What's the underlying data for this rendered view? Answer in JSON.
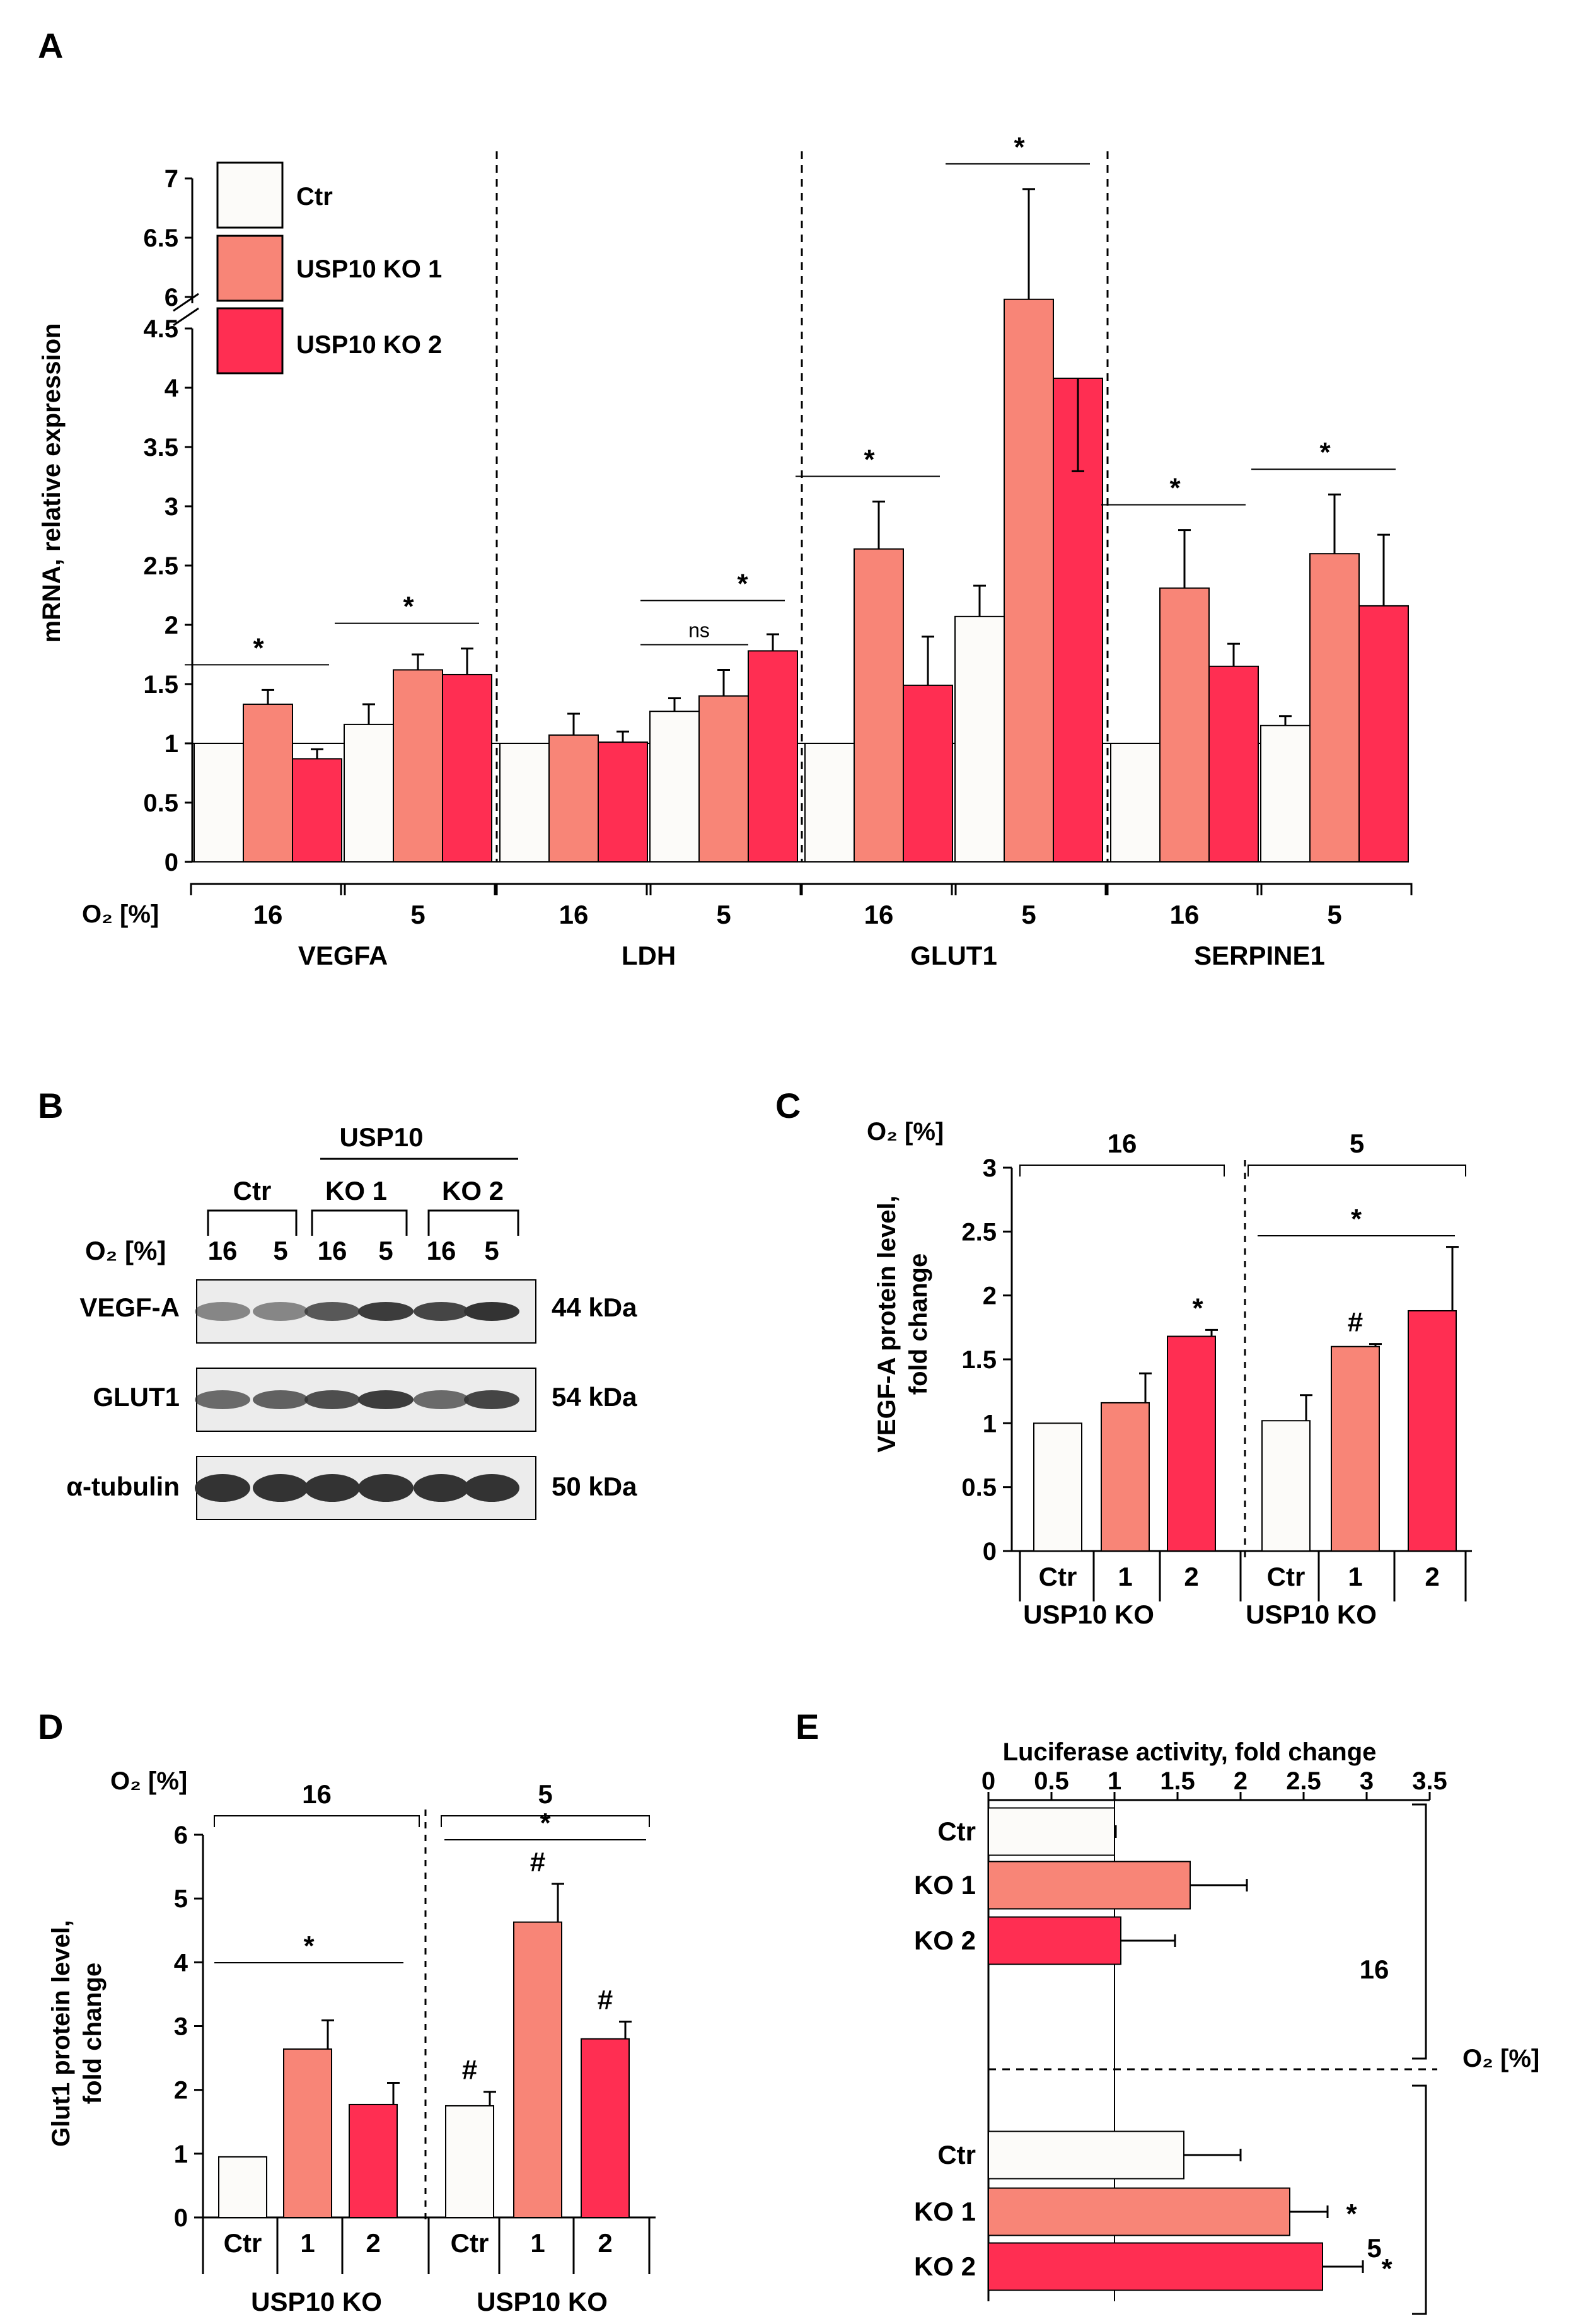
{
  "colors": {
    "ctr": "#fcfbf9",
    "ko1": "#f88577",
    "ko2": "#ff2e52",
    "axis": "#000000",
    "blot_bg": "#ececec",
    "blot_band": "#333333"
  },
  "panel_labels": {
    "a": "A",
    "b": "B",
    "c": "C",
    "d": "D",
    "e": "E"
  },
  "legend": {
    "ctr": "Ctr",
    "ko1": "USP10 KO 1",
    "ko2": "USP10 KO 2"
  },
  "chart_data": [
    {
      "id": "A",
      "type": "bar",
      "ylabel": "mRNA, relative expression",
      "axis_break": "4.5 to 6 (broken axis)",
      "yticks": [
        "0",
        "0.5",
        "1",
        "1.5",
        "2",
        "2.5",
        "3",
        "3.5",
        "4",
        "4.5",
        "6",
        "6.5",
        "7"
      ],
      "o2_label": "O₂ [%]",
      "series": [
        "Ctr",
        "USP10 KO 1",
        "USP10 KO 2"
      ],
      "genes": [
        {
          "name": "VEGFA",
          "groups": [
            {
              "o2": "16",
              "values": [
                1.0,
                1.33,
                0.87
              ],
              "errors": [
                0.01,
                0.12,
                0.08
              ],
              "sig": "*"
            },
            {
              "o2": "5",
              "values": [
                1.16,
                1.62,
                1.58
              ],
              "errors": [
                0.17,
                0.13,
                0.22
              ],
              "sig": "*"
            }
          ]
        },
        {
          "name": "LDH",
          "groups": [
            {
              "o2": "16",
              "values": [
                1.0,
                1.07,
                1.01
              ],
              "errors": [
                0.01,
                0.18,
                0.09
              ],
              "sig": ""
            },
            {
              "o2": "5",
              "values": [
                1.27,
                1.4,
                1.78
              ],
              "errors": [
                0.11,
                0.22,
                0.14
              ],
              "sig": "ns|*"
            }
          ]
        },
        {
          "name": "GLUT1",
          "groups": [
            {
              "o2": "16",
              "values": [
                1.0,
                2.64,
                1.49
              ],
              "errors": [
                0.01,
                0.4,
                0.41
              ],
              "sig": "*"
            },
            {
              "o2": "5",
              "values": [
                2.07,
                5.98,
                4.08
              ],
              "errors": [
                0.26,
                0.93,
                0.45
              ],
              "sig": "*"
            }
          ]
        },
        {
          "name": "SERPINE1",
          "groups": [
            {
              "o2": "16",
              "values": [
                1.0,
                2.31,
                1.65
              ],
              "errors": [
                0.01,
                0.49,
                0.19
              ],
              "sig": "*"
            },
            {
              "o2": "5",
              "values": [
                1.15,
                2.6,
                2.16
              ],
              "errors": [
                0.08,
                0.5,
                0.6
              ],
              "sig": "*"
            }
          ]
        }
      ]
    },
    {
      "id": "C",
      "type": "bar",
      "ylabel": "VEGF-A protein level,",
      "ylabel2": "fold change",
      "yticks": [
        "0",
        "0.5",
        "1",
        "1.5",
        "2",
        "2.5",
        "3"
      ],
      "ylim": [
        0,
        3
      ],
      "o2_label": "O₂ [%]",
      "groups": [
        {
          "o2": "16",
          "categories": [
            "Ctr",
            "1",
            "2"
          ],
          "values": [
            1.0,
            1.16,
            1.68
          ],
          "errors": [
            0,
            0.23,
            0.05
          ],
          "marks": [
            "",
            "",
            "*"
          ]
        },
        {
          "o2": "5",
          "categories": [
            "Ctr",
            "1",
            "2"
          ],
          "values": [
            1.02,
            1.6,
            1.88
          ],
          "errors": [
            0.2,
            0.02,
            0.5
          ],
          "marks": [
            "",
            "#",
            ""
          ],
          "sig": "*"
        }
      ],
      "group_label": "USP10 KO"
    },
    {
      "id": "D",
      "type": "bar",
      "ylabel": "Glut1 protein level,",
      "ylabel2": "fold change",
      "yticks": [
        "0",
        "1",
        "2",
        "3",
        "4",
        "5",
        "6"
      ],
      "ylim": [
        0,
        6
      ],
      "o2_label": "O₂ [%]",
      "groups": [
        {
          "o2": "16",
          "categories": [
            "Ctr",
            "1",
            "2"
          ],
          "values": [
            0.95,
            2.64,
            1.77
          ],
          "errors": [
            0,
            0.45,
            0.34
          ],
          "marks": [
            "",
            "",
            ""
          ],
          "sig": "*"
        },
        {
          "o2": "5",
          "categories": [
            "Ctr",
            "1",
            "2"
          ],
          "values": [
            1.75,
            4.63,
            2.8
          ],
          "errors": [
            0.22,
            0.6,
            0.27
          ],
          "marks": [
            "#",
            "#",
            "#"
          ],
          "sig": "*"
        }
      ],
      "group_label": "USP10 KO"
    },
    {
      "id": "E",
      "type": "bar",
      "orientation": "horizontal",
      "xlabel": "Luciferase activity, fold change",
      "xticks": [
        "0",
        "0.5",
        "1",
        "1.5",
        "2",
        "2.5",
        "3",
        "3.5"
      ],
      "xlim": [
        0,
        3.5
      ],
      "o2_label": "O₂ [%]",
      "groups": [
        {
          "o2": "16",
          "categories": [
            "Ctr",
            "KO 1",
            "KO 2"
          ],
          "values": [
            1.0,
            1.6,
            1.05
          ],
          "errors": [
            0.01,
            0.45,
            0.43
          ],
          "marks": [
            "",
            "",
            ""
          ]
        },
        {
          "o2": "5",
          "categories": [
            "Ctr",
            "KO 1",
            "KO 2"
          ],
          "values": [
            1.55,
            2.39,
            2.65
          ],
          "errors": [
            0.45,
            0.3,
            0.32
          ],
          "marks": [
            "",
            "*",
            "*"
          ]
        }
      ]
    }
  ],
  "blot": {
    "header": "USP10",
    "groups": [
      "Ctr",
      "KO 1",
      "KO 2"
    ],
    "o2_label": "O₂ [%]",
    "lanes": [
      "16",
      "5",
      "16",
      "5",
      "16",
      "5"
    ],
    "rows": [
      {
        "label": "VEGF-A",
        "size": "44 kDa"
      },
      {
        "label": "GLUT1",
        "size": "54 kDa"
      },
      {
        "label": "α-tubulin",
        "size": "50 kDa"
      }
    ]
  }
}
